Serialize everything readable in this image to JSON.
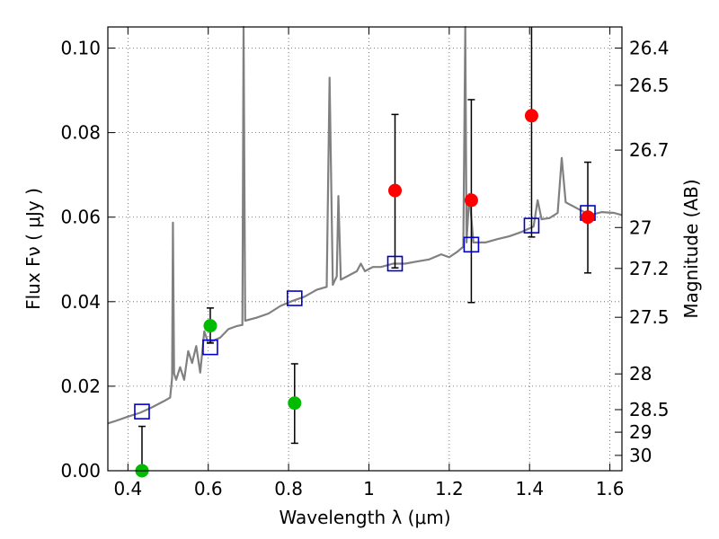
{
  "chart_data": {
    "type": "scatter",
    "xlabel": "Wavelength  λ (μm)",
    "ylabel": "Flux  Fν  ( μJy )",
    "ylabel_right": "Magnitude (AB)",
    "xlim": [
      0.35,
      1.63
    ],
    "ylim": [
      0.0,
      0.105
    ],
    "grid": true,
    "x_ticks": [
      {
        "value": 0.4,
        "label": "0.4"
      },
      {
        "value": 0.6,
        "label": "0.6"
      },
      {
        "value": 0.8,
        "label": "0.8"
      },
      {
        "value": 1.0,
        "label": "1"
      },
      {
        "value": 1.2,
        "label": "1.2"
      },
      {
        "value": 1.4,
        "label": "1.4"
      },
      {
        "value": 1.6,
        "label": "1.6"
      }
    ],
    "y_ticks": [
      {
        "value": 0.0,
        "label": "0.00"
      },
      {
        "value": 0.02,
        "label": "0.02"
      },
      {
        "value": 0.04,
        "label": "0.04"
      },
      {
        "value": 0.06,
        "label": "0.06"
      },
      {
        "value": 0.08,
        "label": "0.08"
      },
      {
        "value": 0.1,
        "label": "0.10"
      }
    ],
    "mag_ticks": [
      {
        "value": 26.4,
        "label": "26.4"
      },
      {
        "value": 26.5,
        "label": "26.5"
      },
      {
        "value": 26.7,
        "label": "26.7"
      },
      {
        "value": 27.0,
        "label": "27"
      },
      {
        "value": 27.2,
        "label": "27.2"
      },
      {
        "value": 27.5,
        "label": "27.5"
      },
      {
        "value": 28.0,
        "label": "28"
      },
      {
        "value": 28.5,
        "label": "28.5"
      },
      {
        "value": 29.0,
        "label": "29"
      },
      {
        "value": 30.0,
        "label": "30"
      }
    ],
    "series": [
      {
        "kind": "line",
        "color": "#808080",
        "points": [
          [
            0.35,
            0.0112
          ],
          [
            0.37,
            0.0118
          ],
          [
            0.4,
            0.0128
          ],
          [
            0.43,
            0.0137
          ],
          [
            0.46,
            0.015
          ],
          [
            0.49,
            0.0165
          ],
          [
            0.505,
            0.0173
          ],
          [
            0.51,
            0.022
          ],
          [
            0.512,
            0.0587
          ],
          [
            0.515,
            0.023
          ],
          [
            0.52,
            0.0215
          ],
          [
            0.53,
            0.0245
          ],
          [
            0.54,
            0.0215
          ],
          [
            0.55,
            0.0283
          ],
          [
            0.56,
            0.0255
          ],
          [
            0.57,
            0.0295
          ],
          [
            0.58,
            0.0232
          ],
          [
            0.59,
            0.033
          ],
          [
            0.6,
            0.0302
          ],
          [
            0.63,
            0.0315
          ],
          [
            0.65,
            0.0335
          ],
          [
            0.67,
            0.0342
          ],
          [
            0.685,
            0.0345
          ],
          [
            0.688,
            0.105
          ],
          [
            0.692,
            0.0355
          ],
          [
            0.72,
            0.0362
          ],
          [
            0.75,
            0.0372
          ],
          [
            0.78,
            0.039
          ],
          [
            0.81,
            0.0402
          ],
          [
            0.84,
            0.0412
          ],
          [
            0.87,
            0.0428
          ],
          [
            0.895,
            0.0435
          ],
          [
            0.902,
            0.093
          ],
          [
            0.91,
            0.044
          ],
          [
            0.92,
            0.046
          ],
          [
            0.924,
            0.065
          ],
          [
            0.93,
            0.0452
          ],
          [
            0.95,
            0.0462
          ],
          [
            0.97,
            0.0472
          ],
          [
            0.98,
            0.049
          ],
          [
            0.99,
            0.0472
          ],
          [
            1.01,
            0.0482
          ],
          [
            1.03,
            0.0482
          ],
          [
            1.06,
            0.049
          ],
          [
            1.09,
            0.049
          ],
          [
            1.12,
            0.0495
          ],
          [
            1.15,
            0.05
          ],
          [
            1.18,
            0.0512
          ],
          [
            1.2,
            0.0505
          ],
          [
            1.22,
            0.0518
          ],
          [
            1.235,
            0.053
          ],
          [
            1.24,
            0.105
          ],
          [
            1.243,
            0.054
          ],
          [
            1.25,
            0.0655
          ],
          [
            1.26,
            0.054
          ],
          [
            1.29,
            0.054
          ],
          [
            1.32,
            0.0548
          ],
          [
            1.35,
            0.0555
          ],
          [
            1.38,
            0.0565
          ],
          [
            1.41,
            0.0578
          ],
          [
            1.42,
            0.064
          ],
          [
            1.43,
            0.0595
          ],
          [
            1.45,
            0.0598
          ],
          [
            1.47,
            0.061
          ],
          [
            1.48,
            0.074
          ],
          [
            1.49,
            0.0635
          ],
          [
            1.52,
            0.062
          ],
          [
            1.55,
            0.0605
          ],
          [
            1.58,
            0.0612
          ],
          [
            1.61,
            0.061
          ],
          [
            1.63,
            0.0605
          ]
        ]
      },
      {
        "kind": "markers",
        "marker": "square",
        "color": "#0000cc",
        "points": [
          [
            0.435,
            0.014
          ],
          [
            0.605,
            0.0292
          ],
          [
            0.815,
            0.0408
          ],
          [
            1.065,
            0.049
          ],
          [
            1.255,
            0.0535
          ],
          [
            1.405,
            0.058
          ],
          [
            1.545,
            0.061
          ]
        ]
      },
      {
        "kind": "errorbar",
        "color": "#00bb00",
        "points": [
          {
            "x": 0.435,
            "y": 0.0,
            "lo": 0.0,
            "hi": 0.0105
          },
          {
            "x": 0.605,
            "y": 0.0343,
            "lo": 0.0302,
            "hi": 0.0385
          },
          {
            "x": 0.815,
            "y": 0.016,
            "lo": 0.0065,
            "hi": 0.0253
          }
        ]
      },
      {
        "kind": "errorbar",
        "color": "#ff0000",
        "points": [
          {
            "x": 1.065,
            "y": 0.0663,
            "lo": 0.048,
            "hi": 0.0843
          },
          {
            "x": 1.255,
            "y": 0.064,
            "lo": 0.0398,
            "hi": 0.0878
          },
          {
            "x": 1.405,
            "y": 0.084,
            "lo": 0.0553,
            "hi": 0.105
          },
          {
            "x": 1.545,
            "y": 0.06,
            "lo": 0.0468,
            "hi": 0.073
          }
        ]
      }
    ]
  }
}
